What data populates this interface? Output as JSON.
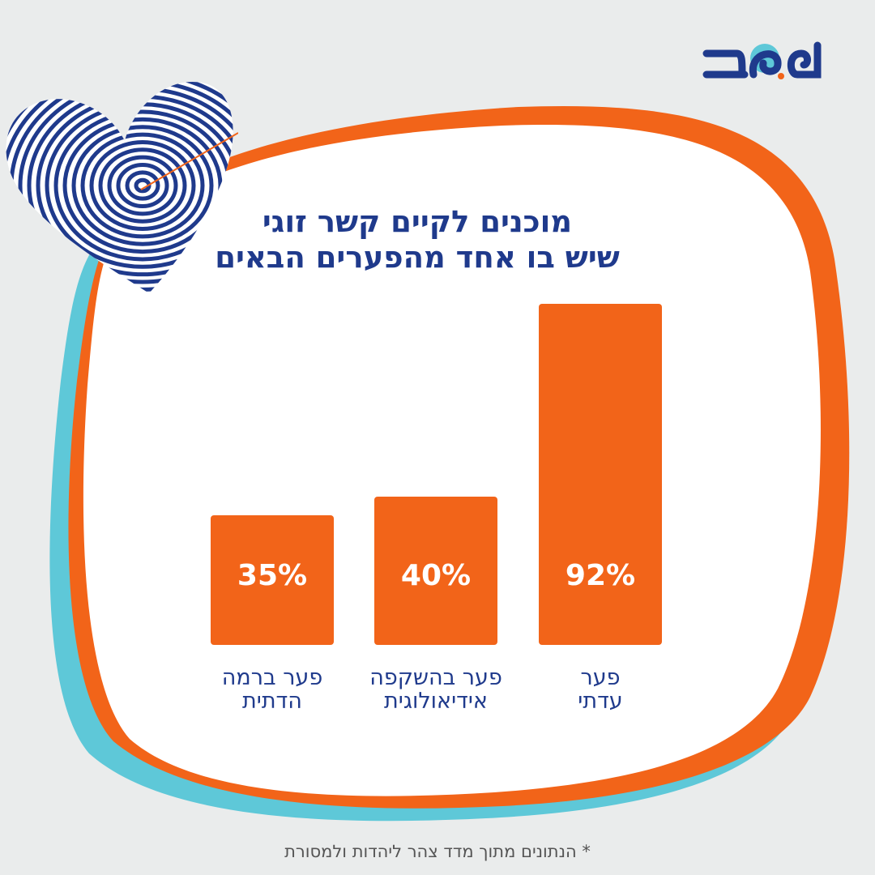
{
  "logo": {
    "text": "משב",
    "colors": {
      "navy": "#1f3a8c",
      "orange": "#f26419",
      "cyan": "#5ec8d8"
    }
  },
  "chart_data": {
    "type": "bar",
    "title": "מוכנים לקיים קשר זוגי שיש בו אחד מהפערים הבאים",
    "title_lines": [
      "מוכנים לקיים קשר זוגי",
      "שיש בו אחד מהפערים הבאים"
    ],
    "categories": [
      "פער עדתי",
      "פער בהשקפה אידיאולוגית",
      "פער ברמה הדתית"
    ],
    "category_lines": [
      [
        "פער",
        "עדתי"
      ],
      [
        "פער בהשקפה",
        "אידיאולוגית"
      ],
      [
        "פער ברמה",
        "הדתית"
      ]
    ],
    "values": [
      92,
      40,
      35
    ],
    "labels": [
      "92%",
      "40%",
      "35%"
    ],
    "unit": "%",
    "ylim": [
      0,
      100
    ],
    "grid": false,
    "bar_color": "#f26419",
    "direction": "right-to-left"
  },
  "footnote": "* הנתונים מתוך מדד צהר ליהדות ולמסורת",
  "decoration": {
    "heart": "fingerprint-heart-icon"
  }
}
